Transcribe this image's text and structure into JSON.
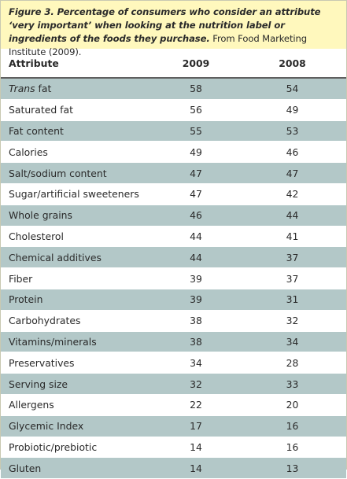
{
  "caption": {
    "bold_text": "Figure 3. Percentage of consumers who consider an attribute ‘very important’ when looking at the nutrition label or ingredients of the foods they purchase.",
    "source_text": "From Food Marketing Institute (2009)."
  },
  "table": {
    "headers": [
      "Attribute",
      "2009",
      "2008"
    ],
    "rows": [
      {
        "attr_italic": "Trans",
        "attr": " fat",
        "v2009": "58",
        "v2008": "54",
        "shade": true
      },
      {
        "attr_italic": "",
        "attr": "Saturated fat",
        "v2009": "56",
        "v2008": "49",
        "shade": false
      },
      {
        "attr_italic": "",
        "attr": "Fat content",
        "v2009": "55",
        "v2008": "53",
        "shade": true
      },
      {
        "attr_italic": "",
        "attr": "Calories",
        "v2009": "49",
        "v2008": "46",
        "shade": false
      },
      {
        "attr_italic": "",
        "attr": "Salt/sodium content",
        "v2009": "47",
        "v2008": "47",
        "shade": true
      },
      {
        "attr_italic": "",
        "attr": "Sugar/artificial sweeteners",
        "v2009": "47",
        "v2008": "42",
        "shade": false
      },
      {
        "attr_italic": "",
        "attr": "Whole grains",
        "v2009": "46",
        "v2008": "44",
        "shade": true
      },
      {
        "attr_italic": "",
        "attr": "Cholesterol",
        "v2009": "44",
        "v2008": "41",
        "shade": false
      },
      {
        "attr_italic": "",
        "attr": "Chemical additives",
        "v2009": "44",
        "v2008": "37",
        "shade": true
      },
      {
        "attr_italic": "",
        "attr": "Fiber",
        "v2009": "39",
        "v2008": "37",
        "shade": false
      },
      {
        "attr_italic": "",
        "attr": "Protein",
        "v2009": "39",
        "v2008": "31",
        "shade": true
      },
      {
        "attr_italic": "",
        "attr": "Carbohydrates",
        "v2009": "38",
        "v2008": "32",
        "shade": false
      },
      {
        "attr_italic": "",
        "attr": "Vitamins/minerals",
        "v2009": "38",
        "v2008": "34",
        "shade": true
      },
      {
        "attr_italic": "",
        "attr": "Preservatives",
        "v2009": "34",
        "v2008": "28",
        "shade": false
      },
      {
        "attr_italic": "",
        "attr": "Serving size",
        "v2009": "32",
        "v2008": "33",
        "shade": true
      },
      {
        "attr_italic": "",
        "attr": "Allergens",
        "v2009": "22",
        "v2008": "20",
        "shade": false
      },
      {
        "attr_italic": "",
        "attr": "Glycemic Index",
        "v2009": "17",
        "v2008": "16",
        "shade": true
      },
      {
        "attr_italic": "",
        "attr": "Probiotic/prebiotic",
        "v2009": "14",
        "v2008": "16",
        "shade": false
      },
      {
        "attr_italic": "",
        "attr": "Gluten",
        "v2009": "14",
        "v2008": "13",
        "shade": true
      }
    ]
  },
  "colors": {
    "caption_background": "#fff8bd",
    "row_shade": "#b3c8c8",
    "header_rule": "#5f5f5f",
    "border": "#c9c9b2"
  }
}
